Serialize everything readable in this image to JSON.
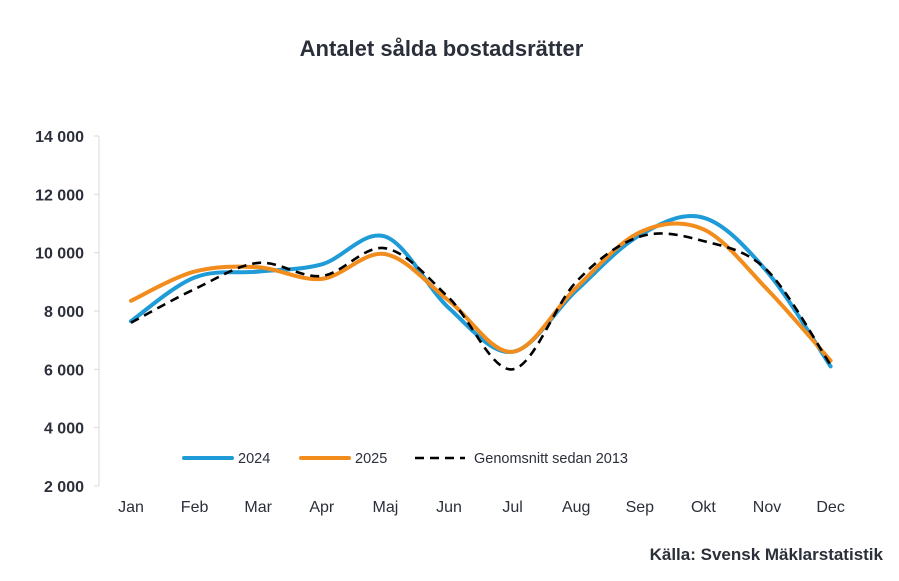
{
  "chart_data": {
    "type": "line",
    "title": "Antalet sålda bostadsrätter",
    "source": "Källa: Svensk Mäklarstatistik",
    "xlabel": "",
    "ylabel": "",
    "categories": [
      "Jan",
      "Feb",
      "Mar",
      "Apr",
      "Maj",
      "Jun",
      "Jul",
      "Aug",
      "Sep",
      "Okt",
      "Nov",
      "Dec"
    ],
    "ylim": [
      2000,
      14000
    ],
    "yticks": [
      2000,
      4000,
      6000,
      8000,
      10000,
      12000,
      14000
    ],
    "ytick_labels": [
      "2 000",
      "4 000",
      "6 000",
      "8 000",
      "10 000",
      "12 000",
      "14 000"
    ],
    "grid": false,
    "legend_position": "bottom-center",
    "series": [
      {
        "name": "2024",
        "color": "#1f9bd7",
        "dash": "solid",
        "values": [
          7650,
          9150,
          9350,
          9600,
          10550,
          8100,
          6600,
          8700,
          10600,
          11200,
          9350,
          6100
        ]
      },
      {
        "name": "2025",
        "color": "#f28c1c",
        "dash": "solid",
        "values": [
          8350,
          9350,
          9500,
          9100,
          9950,
          8350,
          6600,
          8800,
          10700,
          10800,
          8750,
          6300
        ]
      },
      {
        "name": "Genomsnitt sedan 2013",
        "color": "#000000",
        "dash": "dashed",
        "values": [
          7600,
          8750,
          9650,
          9200,
          10150,
          8450,
          6000,
          9000,
          10550,
          10400,
          9400,
          6150
        ]
      }
    ]
  }
}
